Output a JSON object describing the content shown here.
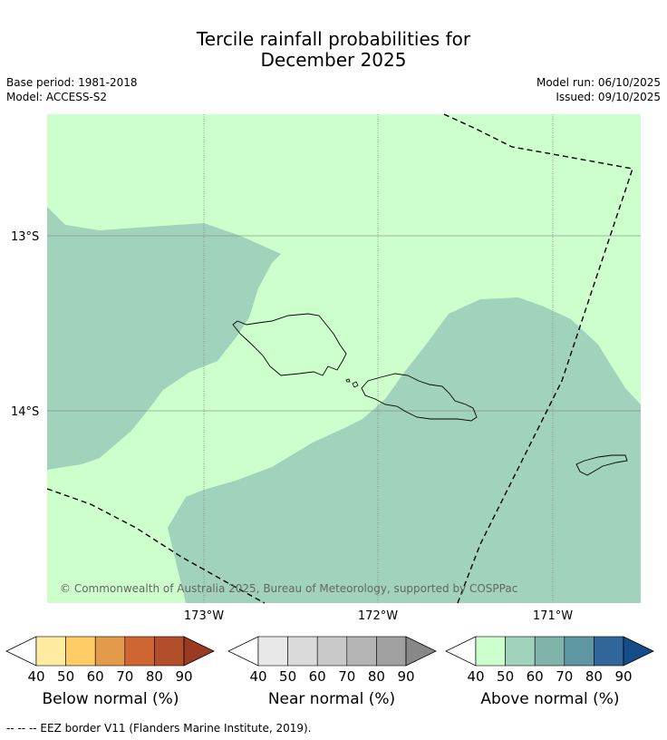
{
  "title": {
    "line1": "Tercile rainfall probabilities for",
    "line2": "December 2025"
  },
  "info": {
    "base_period": "Base period: 1981-2018",
    "model": "Model: ACCESS-S2",
    "model_run": "Model run: 06/10/2025",
    "issued": "Issued: 09/10/2025"
  },
  "map": {
    "lat_labels": [
      "13°S",
      "14°S"
    ],
    "lon_labels": [
      "173°W",
      "172°W",
      "171°W"
    ],
    "copyright": "© Commonwealth of Australia 2025, Bureau of Meteorology, supported by COSPPac",
    "colors": {
      "above_50": "#ccffcc",
      "above_60": "#a0d2bc",
      "land_outline": "#000000",
      "grid": "#777777"
    }
  },
  "colorbars": [
    {
      "label": "Below normal (%)",
      "ticks": [
        "40",
        "50",
        "60",
        "70",
        "80",
        "90"
      ],
      "colors": [
        "#ffffff",
        "#ffeca0",
        "#ffcc66",
        "#e39a4a",
        "#cf6533",
        "#b24f2a",
        "#9a3a22"
      ]
    },
    {
      "label": "Near normal (%)",
      "ticks": [
        "40",
        "50",
        "60",
        "70",
        "80",
        "90"
      ],
      "colors": [
        "#ffffff",
        "#e8e8e8",
        "#dadada",
        "#c8c8c8",
        "#b4b4b4",
        "#a0a0a0",
        "#888888"
      ]
    },
    {
      "label": "Above normal (%)",
      "ticks": [
        "40",
        "50",
        "60",
        "70",
        "80",
        "90"
      ],
      "colors": [
        "#ffffff",
        "#ccffcc",
        "#a0d2bc",
        "#80b4aa",
        "#5e96a2",
        "#306699",
        "#144d88"
      ]
    }
  ],
  "footnote": "--  --  -- EEZ border V11 (Flanders Marine Institute, 2019)."
}
